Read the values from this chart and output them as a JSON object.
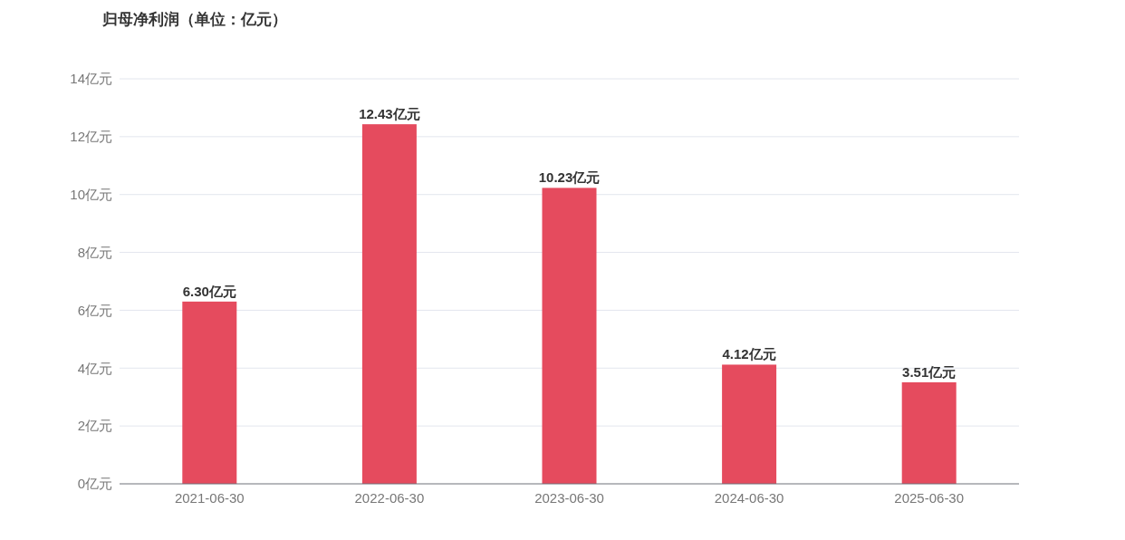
{
  "chart_data": {
    "type": "bar",
    "title": "归母净利润（单位：亿元）",
    "categories": [
      "2021-06-30",
      "2022-06-30",
      "2023-06-30",
      "2024-06-30",
      "2025-06-30"
    ],
    "values": [
      6.3,
      12.43,
      10.23,
      4.12,
      3.51
    ],
    "value_labels": [
      "6.30亿元",
      "12.43亿元",
      "10.23亿元",
      "4.12亿元",
      "3.51亿元"
    ],
    "color": "#e54b5e",
    "ylim": [
      0,
      14
    ],
    "yticks": [
      {
        "value": 0,
        "label": "0亿元"
      },
      {
        "value": 2,
        "label": "2亿元"
      },
      {
        "value": 4,
        "label": "4亿元"
      },
      {
        "value": 6,
        "label": "6亿元"
      },
      {
        "value": 8,
        "label": "8亿元"
      },
      {
        "value": 10,
        "label": "10亿元"
      },
      {
        "value": 12,
        "label": "12亿元"
      },
      {
        "value": 14,
        "label": "14亿元"
      }
    ],
    "grid": "y"
  }
}
